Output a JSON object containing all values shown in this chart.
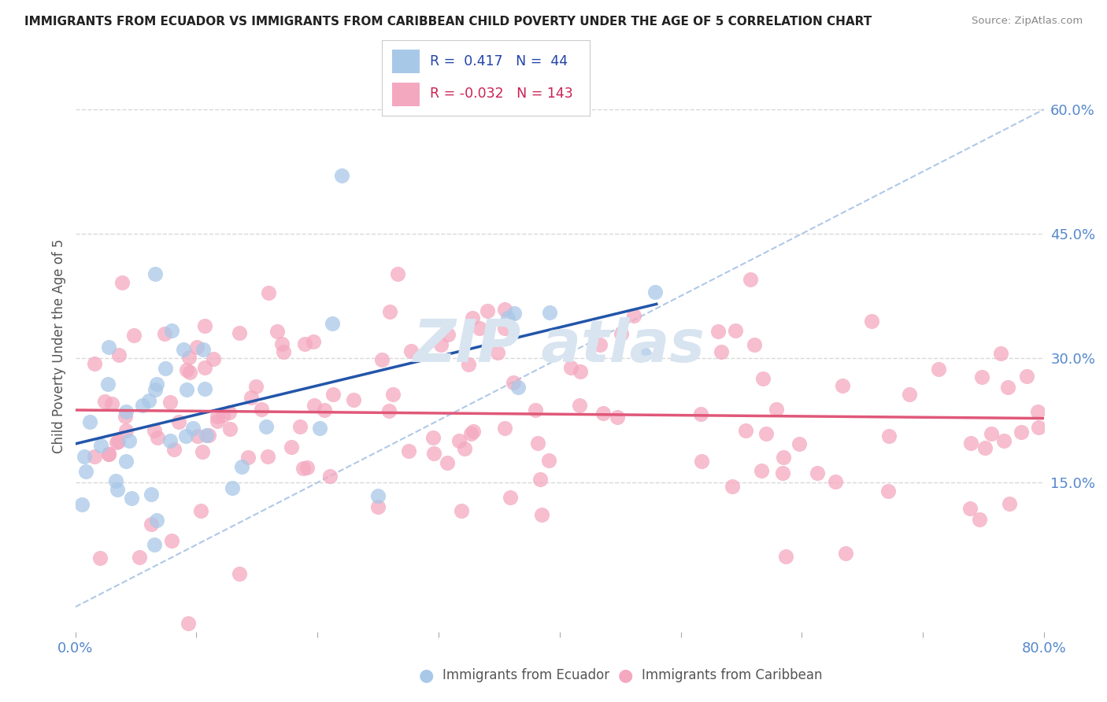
{
  "title": "IMMIGRANTS FROM ECUADOR VS IMMIGRANTS FROM CARIBBEAN CHILD POVERTY UNDER THE AGE OF 5 CORRELATION CHART",
  "source": "Source: ZipAtlas.com",
  "ylabel": "Child Poverty Under the Age of 5",
  "xlim": [
    0.0,
    0.8
  ],
  "ylim": [
    -0.03,
    0.66
  ],
  "ecuador_R": 0.417,
  "ecuador_N": 44,
  "caribbean_R": -0.032,
  "caribbean_N": 143,
  "ecuador_color": "#a8c8e8",
  "caribbean_color": "#f4a8c0",
  "ecuador_line_color": "#2255aa",
  "caribbean_line_color": "#e05878",
  "ref_line_color": "#b0c8e8",
  "background_color": "#ffffff",
  "grid_color": "#d8d8d8",
  "watermark_color": "#d8e4f0",
  "x_tick_left": "0.0%",
  "x_tick_right": "80.0%",
  "y_ticks_right": [
    0.15,
    0.3,
    0.45,
    0.6
  ],
  "y_tick_labels_right": [
    "15.0%",
    "30.0%",
    "45.0%",
    "60.0%"
  ],
  "tick_color": "#5588cc",
  "title_color": "#222222",
  "source_color": "#888888",
  "ylabel_color": "#555555",
  "legend_border_color": "#cccccc",
  "legend_blue_text_color": "#2244aa",
  "legend_pink_text_color": "#cc2255"
}
